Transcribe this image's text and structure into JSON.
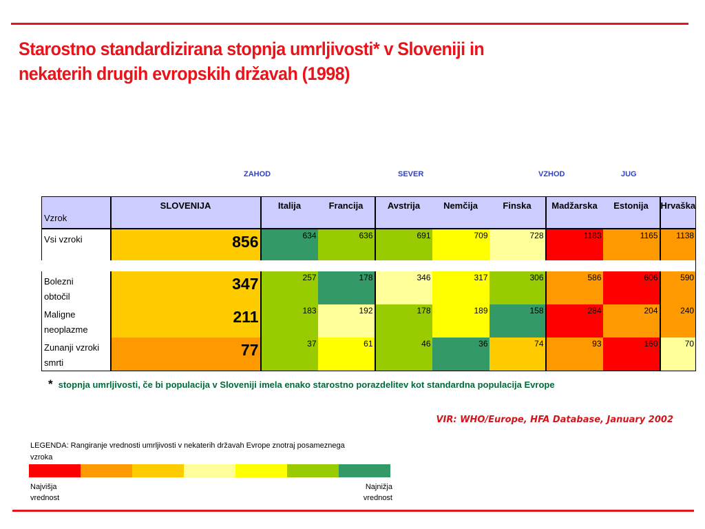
{
  "title_line1": "Starostno standardizirana stopnja umrljivosti* v Sloveniji in",
  "title_line2": "nekaterih drugih evropskih državah (1998)",
  "regions": [
    "ZAHOD",
    "SEVER",
    "VZHOD",
    "JUG"
  ],
  "footnote_star": "*",
  "footnote": "stopnja umrljivosti, če bi populacija v Sloveniji imela enako starostno porazdelitev kot standardna populacija Evrope",
  "source": "VIR: WHO/Europe, HFA Database, January 2002",
  "legend": {
    "title": "LEGENDA: Rangiranje vrednosti umrljivosti v nekaterih državah Evrope znotraj posameznega vzroka",
    "colors": [
      "#ff0000",
      "#ff9900",
      "#ffcc00",
      "#ffff99",
      "#ffff00",
      "#99cc00",
      "#339966"
    ],
    "high_label_1": "Najvišja",
    "high_label_2": "vrednost",
    "low_label_1": "Najnižja",
    "low_label_2": "vrednost"
  },
  "chart_data": {
    "type": "table",
    "title": "Starostno standardizirana stopnja umrljivosti* v Sloveniji in nekaterih drugih evropskih državah (1998)",
    "corner_label": "Vzrok",
    "columns": [
      "SLOVENIJA",
      "Italija",
      "Francija",
      "Avstrija",
      "Nemčija",
      "Finska",
      "Madžarska",
      "Estonija",
      "Hrvaška"
    ],
    "rows": [
      {
        "cause_1": "Vsi vzroki",
        "cause_2": "",
        "values": [
          856,
          634,
          636,
          691,
          709,
          728,
          1183,
          1165,
          1138
        ],
        "colors": [
          "#ffcc00",
          "#339966",
          "#99cc00",
          "#99cc00",
          "#ffff00",
          "#ffff99",
          "#ff0000",
          "#ff9900",
          "#ff9900"
        ]
      },
      {
        "cause_1": "Bolezni",
        "cause_2": "obtočil",
        "values": [
          347,
          257,
          178,
          346,
          317,
          306,
          586,
          606,
          590
        ],
        "colors": [
          "#ffcc00",
          "#99cc00",
          "#339966",
          "#ffff99",
          "#ffff00",
          "#99cc00",
          "#ff9900",
          "#ff0000",
          "#ff9900"
        ]
      },
      {
        "cause_1": "Maligne",
        "cause_2": "neoplazme",
        "values": [
          211,
          183,
          192,
          178,
          189,
          158,
          284,
          204,
          240
        ],
        "colors": [
          "#ffcc00",
          "#99cc00",
          "#ffff99",
          "#99cc00",
          "#ffff00",
          "#339966",
          "#ff0000",
          "#ff9900",
          "#ff9900"
        ]
      },
      {
        "cause_1": "Zunanji vzroki",
        "cause_2": "smrti",
        "values": [
          77,
          37,
          61,
          46,
          36,
          74,
          93,
          160,
          70
        ],
        "colors": [
          "#ff9900",
          "#99cc00",
          "#ffff00",
          "#99cc00",
          "#339966",
          "#ffcc00",
          "#ff9900",
          "#ff0000",
          "#ffff99"
        ]
      }
    ]
  }
}
